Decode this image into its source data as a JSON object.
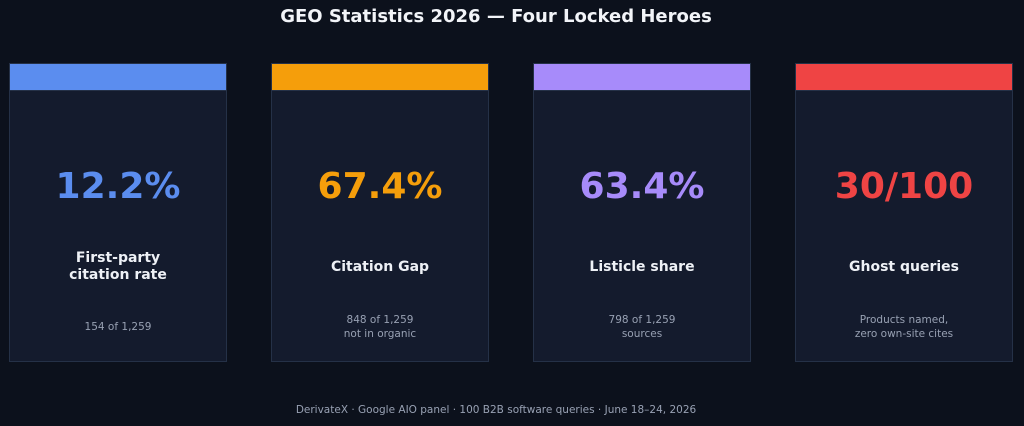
{
  "title": "GEO Statistics 2026 — Four Locked Heroes",
  "chart_data": {
    "type": "table",
    "cards": [
      {
        "value": "12.2%",
        "label_lines": [
          "First-party",
          "citation rate"
        ],
        "note_lines": [
          "154 of 1,259"
        ],
        "color": "#5b8def"
      },
      {
        "value": "67.4%",
        "label_lines": [
          "Citation Gap"
        ],
        "note_lines": [
          "848 of 1,259",
          "not in organic"
        ],
        "color": "#f59e0b"
      },
      {
        "value": "63.4%",
        "label_lines": [
          "Listicle share"
        ],
        "note_lines": [
          "798 of 1,259",
          "sources"
        ],
        "color": "#a78bfa"
      },
      {
        "value": "30/100",
        "label_lines": [
          "Ghost queries"
        ],
        "note_lines": [
          "Products named,",
          "zero own-site cites"
        ],
        "color": "#ef4444"
      }
    ]
  },
  "footer": "DerivateX · Google AIO panel · 100 B2B software queries · June 18–24, 2026"
}
